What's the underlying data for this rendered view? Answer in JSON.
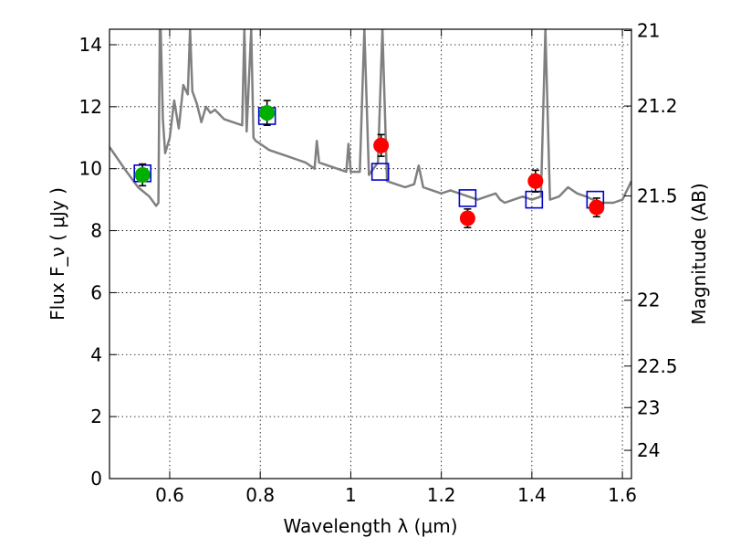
{
  "chart_data": {
    "type": "scatter",
    "xlabel": "Wavelength  λ (μm)",
    "ylabel": "Flux  F_ν  ( μJy )",
    "y2label": "Magnitude (AB)",
    "xlim": [
      0.467,
      1.62
    ],
    "ylim": [
      0,
      14.5
    ],
    "grid": true,
    "x_ticks": [
      0.6,
      0.8,
      1,
      1.2,
      1.4,
      1.6
    ],
    "x_tick_labels": [
      "0.6",
      "0.8",
      "1",
      "1.2",
      "1.4",
      "1.6"
    ],
    "y_ticks": [
      0,
      2,
      4,
      6,
      8,
      10,
      12,
      14
    ],
    "y_tick_labels": [
      "0",
      "2",
      "4",
      "6",
      "8",
      "10",
      "12",
      "14"
    ],
    "y2_ticks": [
      21,
      21.2,
      21.5,
      22,
      22.5,
      23,
      24
    ],
    "y2_tick_labels": [
      "21",
      "21.2",
      "21.5",
      "22",
      "22.5",
      "23",
      "24"
    ],
    "colors": {
      "green_points": "#00b000",
      "red_points": "#ff0000",
      "model_boxes": "#0000cc",
      "sed_line": "#808080",
      "error_bars": "#000000"
    },
    "series": [
      {
        "marker": "circle-green",
        "points": [
          {
            "x": 0.54,
            "y": 9.8,
            "err": 0.35
          },
          {
            "x": 0.815,
            "y": 11.8,
            "err": 0.4
          }
        ]
      },
      {
        "marker": "circle-red",
        "points": [
          {
            "x": 1.067,
            "y": 10.75,
            "err": 0.35
          },
          {
            "x": 1.258,
            "y": 8.4,
            "err": 0.3
          },
          {
            "x": 1.408,
            "y": 9.6,
            "err": 0.35
          },
          {
            "x": 1.543,
            "y": 8.75,
            "err": 0.3
          }
        ]
      },
      {
        "marker": "square-open-blue",
        "points": [
          {
            "x": 0.54,
            "y": 9.85
          },
          {
            "x": 0.815,
            "y": 11.7
          },
          {
            "x": 1.065,
            "y": 9.9
          },
          {
            "x": 1.258,
            "y": 9.05
          },
          {
            "x": 1.405,
            "y": 9.0
          },
          {
            "x": 1.54,
            "y": 9.0
          }
        ]
      },
      {
        "marker": "line-gray",
        "x": [
          0.467,
          0.5,
          0.53,
          0.555,
          0.57,
          0.575,
          0.578,
          0.58,
          0.585,
          0.59,
          0.6,
          0.61,
          0.62,
          0.63,
          0.64,
          0.645,
          0.65,
          0.66,
          0.67,
          0.68,
          0.69,
          0.7,
          0.72,
          0.74,
          0.76,
          0.765,
          0.77,
          0.78,
          0.785,
          0.79,
          0.8,
          0.82,
          0.84,
          0.86,
          0.88,
          0.9,
          0.92,
          0.925,
          0.93,
          0.95,
          0.97,
          0.99,
          0.995,
          1.0,
          1.02,
          1.03,
          1.04,
          1.06,
          1.07,
          1.08,
          1.1,
          1.12,
          1.14,
          1.15,
          1.16,
          1.18,
          1.2,
          1.22,
          1.24,
          1.26,
          1.28,
          1.3,
          1.32,
          1.33,
          1.34,
          1.36,
          1.38,
          1.4,
          1.42,
          1.43,
          1.44,
          1.46,
          1.48,
          1.5,
          1.52,
          1.55,
          1.58,
          1.6,
          1.62
        ],
        "y": [
          10.7,
          10.0,
          9.4,
          9.1,
          8.8,
          8.9,
          14.5,
          14.5,
          11.6,
          10.5,
          11.0,
          12.2,
          11.3,
          12.7,
          12.4,
          14.5,
          12.5,
          12.1,
          11.5,
          12.0,
          11.8,
          11.9,
          11.6,
          11.5,
          11.4,
          14.5,
          11.2,
          14.5,
          11.0,
          10.9,
          10.8,
          10.6,
          10.5,
          10.4,
          10.3,
          10.2,
          10.0,
          10.9,
          10.2,
          10.1,
          10.0,
          9.9,
          10.8,
          9.9,
          9.9,
          14.5,
          9.8,
          10.2,
          14.5,
          9.6,
          9.5,
          9.4,
          9.5,
          10.1,
          9.4,
          9.3,
          9.2,
          9.3,
          9.2,
          9.1,
          9.0,
          9.1,
          9.2,
          9.0,
          8.9,
          9.0,
          9.1,
          9.0,
          9.1,
          14.5,
          9.0,
          9.1,
          9.4,
          9.2,
          9.1,
          8.9,
          8.9,
          9.0,
          9.6
        ]
      }
    ]
  }
}
